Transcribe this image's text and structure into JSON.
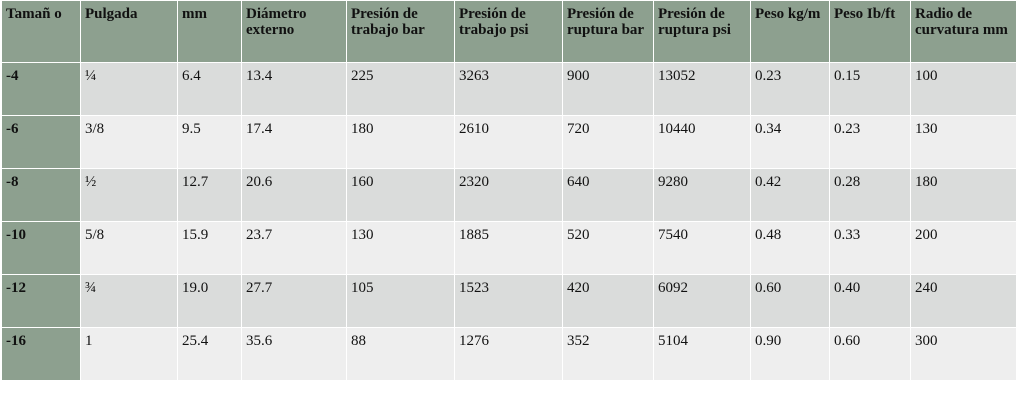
{
  "table": {
    "headers": [
      "Tamañ o",
      "Pulgada",
      "mm",
      "Diámetro externo",
      "Presión de trabajo bar",
      "Presión de trabajo psi",
      "Presión de ruptura bar",
      "Presión de ruptura psi",
      "Peso kg/m",
      "Peso Ib/ft",
      "Radio de curvatura mm"
    ],
    "rows": [
      [
        "-4",
        "¼",
        "6.4",
        "13.4",
        "225",
        "3263",
        "900",
        "13052",
        "0.23",
        "0.15",
        "100"
      ],
      [
        "-6",
        "3/8",
        "9.5",
        "17.4",
        "180",
        "2610",
        "720",
        "10440",
        "0.34",
        "0.23",
        "130"
      ],
      [
        "-8",
        "½",
        "12.7",
        "20.6",
        "160",
        "2320",
        "640",
        "9280",
        "0.42",
        "0.28",
        "180"
      ],
      [
        "-10",
        "5/8",
        "15.9",
        "23.7",
        "130",
        "1885",
        "520",
        "7540",
        "0.48",
        "0.33",
        "200"
      ],
      [
        "-12",
        "¾",
        "19.0",
        "27.7",
        "105",
        "1523",
        "420",
        "6092",
        "0.60",
        "0.40",
        "240"
      ],
      [
        "-16",
        "1",
        "25.4",
        "35.6",
        "88",
        "1276",
        "352",
        "5104",
        "0.90",
        "0.60",
        "300"
      ]
    ]
  },
  "colors": {
    "header_bg": "#8da08f",
    "row_light": "#dadcdb",
    "row_lighter": "#eeeeee"
  }
}
